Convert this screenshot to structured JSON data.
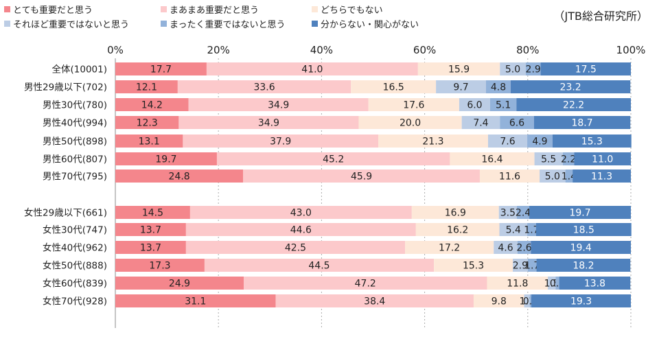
{
  "source_note": "（JTB総合研究所）",
  "chart_data": {
    "type": "bar",
    "orientation": "horizontal",
    "stacked": true,
    "percent_scale": true,
    "xlim": [
      0,
      100
    ],
    "x_ticks": [
      "0%",
      "20%",
      "40%",
      "60%",
      "80%",
      "100%"
    ],
    "grid": "vertical dashed",
    "legend_placement": "top-left",
    "categories": [
      "全体(10001)",
      "男性29歳以下(702)",
      "男性30代(780)",
      "男性40代(994)",
      "男性50代(898)",
      "男性60代(807)",
      "男性70代(795)",
      "女性29歳以下(661)",
      "女性30代(747)",
      "女性40代(962)",
      "女性50代(888)",
      "女性60代(839)",
      "女性70代(928)"
    ],
    "series": [
      {
        "name": "とても重要だと思う",
        "color": "#f4868c",
        "values": [
          17.7,
          12.1,
          14.2,
          12.3,
          13.1,
          19.7,
          24.8,
          14.5,
          13.7,
          13.7,
          17.3,
          24.9,
          31.1
        ]
      },
      {
        "name": "まあまあ重要だと思う",
        "color": "#fcc9cb",
        "values": [
          41.0,
          33.6,
          34.9,
          34.9,
          37.9,
          45.2,
          45.9,
          43.0,
          44.6,
          42.5,
          44.5,
          47.2,
          38.4
        ]
      },
      {
        "name": "どちらでもない",
        "color": "#fde8d8",
        "values": [
          15.9,
          16.5,
          17.6,
          20.0,
          21.3,
          16.4,
          11.6,
          16.9,
          16.2,
          17.2,
          15.3,
          11.8,
          9.8
        ]
      },
      {
        "name": "それほど重要ではないと思う",
        "color": "#bccde5",
        "values": [
          5.0,
          9.7,
          6.0,
          7.4,
          7.6,
          5.5,
          5.0,
          3.5,
          5.4,
          4.6,
          2.9,
          1.5,
          1.1
        ]
      },
      {
        "name": "まったく重要ではないと思う",
        "color": "#92b2da",
        "values": [
          2.9,
          4.8,
          5.1,
          6.6,
          4.9,
          2.2,
          1.4,
          2.4,
          1.7,
          2.6,
          1.7,
          0.7,
          0.3
        ]
      },
      {
        "name": "分からない・関心がない",
        "color": "#4f81bd",
        "values": [
          17.5,
          23.2,
          22.2,
          18.7,
          15.3,
          11.0,
          11.3,
          19.7,
          18.5,
          19.4,
          18.2,
          13.8,
          19.3
        ]
      }
    ]
  }
}
